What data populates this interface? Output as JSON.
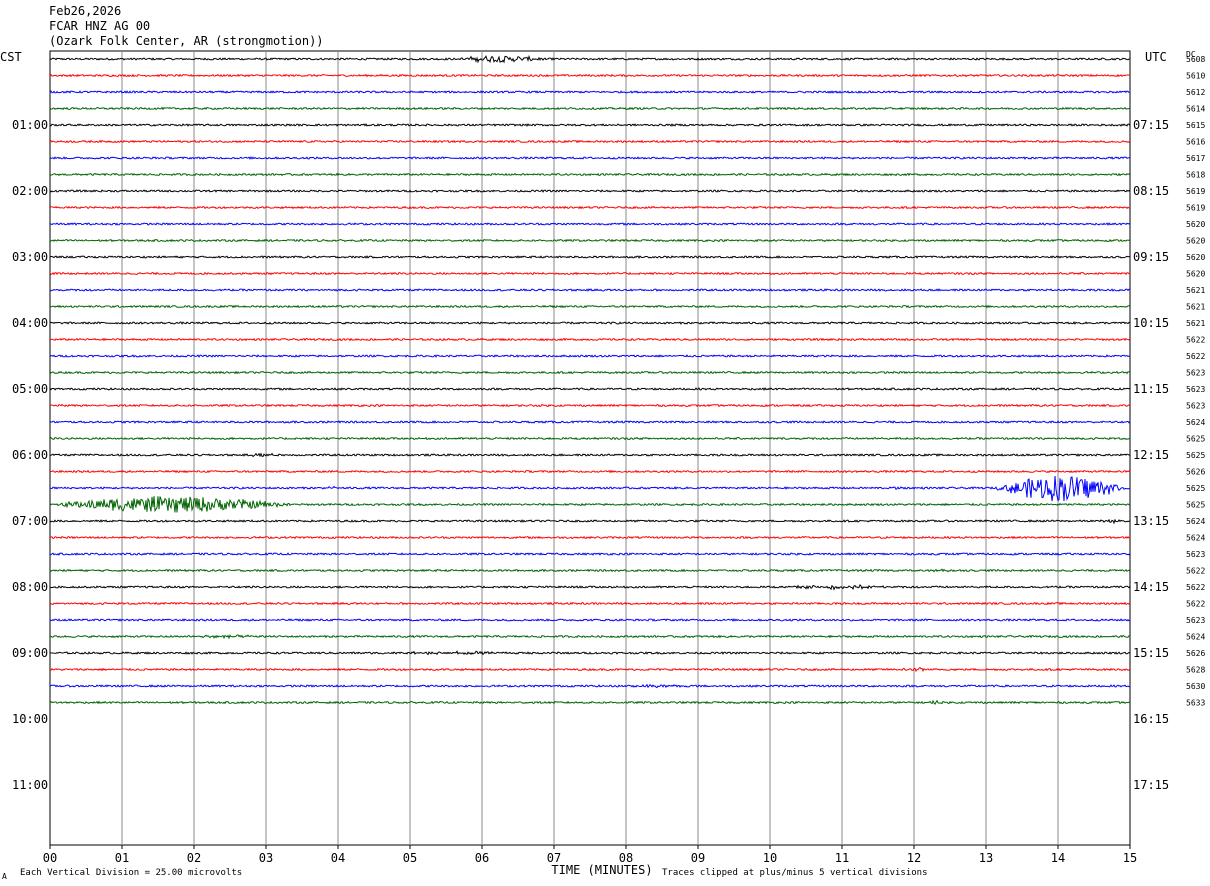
{
  "header": {
    "date": "Feb26,2026",
    "station": "FCAR HNZ AG 00",
    "location": "(Ozark Folk Center, AR (strongmotion))"
  },
  "chart_data": {
    "type": "line",
    "left_timezone": "CST",
    "right_timezone": "UTC",
    "dc_label": "DC",
    "xlabel": "TIME (MINUTES)",
    "xlim": [
      0,
      15
    ],
    "x_ticks": [
      "00",
      "01",
      "02",
      "03",
      "04",
      "05",
      "06",
      "07",
      "08",
      "09",
      "10",
      "11",
      "12",
      "13",
      "14",
      "15"
    ],
    "lines_per_hour": 4,
    "trace_colors": [
      "#000000",
      "#ff0000",
      "#0000ff",
      "#006400"
    ],
    "left_hour_labels": [
      "01:00",
      "02:00",
      "03:00",
      "04:00",
      "05:00",
      "06:00",
      "07:00",
      "08:00",
      "09:00",
      "10:00",
      "11:00"
    ],
    "right_hour_labels": [
      "07:15",
      "08:15",
      "09:15",
      "10:15",
      "11:15",
      "12:15",
      "13:15",
      "14:15",
      "15:15",
      "16:15",
      "17:15"
    ],
    "dc_offsets": [
      5608,
      5610,
      5612,
      5614,
      5615,
      5616,
      5617,
      5618,
      5619,
      5619,
      5620,
      5620,
      5620,
      5620,
      5621,
      5621,
      5621,
      5622,
      5622,
      5623,
      5623,
      5623,
      5624,
      5625,
      5625,
      5626,
      5625,
      5625,
      5624,
      5624,
      5623,
      5622,
      5622,
      5622,
      5623,
      5624,
      5626,
      5628,
      5630,
      5633
    ],
    "events": [
      {
        "line": 0,
        "start_min": 5.6,
        "end_min": 6.9,
        "amplitude_div": 1.2
      },
      {
        "line": 24,
        "start_min": 2.75,
        "end_min": 3.2,
        "amplitude_div": 0.6
      },
      {
        "line": 26,
        "start_min": 3.8,
        "end_min": 4.1,
        "amplitude_div": 0.4
      },
      {
        "line": 26,
        "start_min": 11.7,
        "end_min": 11.9,
        "amplitude_div": 0.4
      },
      {
        "line": 26,
        "start_min": 13.1,
        "end_min": 15.0,
        "amplitude_div": 5.0
      },
      {
        "line": 27,
        "start_min": 0.0,
        "end_min": 3.4,
        "amplitude_div": 3.0
      },
      {
        "line": 28,
        "start_min": 14.5,
        "end_min": 15.0,
        "amplitude_div": 0.5
      },
      {
        "line": 31,
        "start_min": 12.0,
        "end_min": 12.7,
        "amplitude_div": 0.4
      },
      {
        "line": 32,
        "start_min": 10.2,
        "end_min": 11.7,
        "amplitude_div": 0.6
      },
      {
        "line": 35,
        "start_min": 1.6,
        "end_min": 3.0,
        "amplitude_div": 0.4
      },
      {
        "line": 36,
        "start_min": 4.5,
        "end_min": 7.3,
        "amplitude_div": 0.4
      },
      {
        "line": 37,
        "start_min": 11.8,
        "end_min": 12.3,
        "amplitude_div": 0.5
      },
      {
        "line": 38,
        "start_min": 8.0,
        "end_min": 9.0,
        "amplitude_div": 0.4
      },
      {
        "line": 39,
        "start_min": 12.2,
        "end_min": 12.4,
        "amplitude_div": 0.6
      },
      {
        "line": 40,
        "start_min": 0.5,
        "end_min": 1.0,
        "amplitude_div": 0.5
      },
      {
        "line": 40,
        "start_min": 10.0,
        "end_min": 11.0,
        "amplitude_div": 0.5
      },
      {
        "line": 41,
        "start_min": 2.0,
        "end_min": 3.2,
        "amplitude_div": 0.5
      },
      {
        "line": 42,
        "start_min": 6.8,
        "end_min": 7.8,
        "amplitude_div": 0.5
      },
      {
        "line": 43,
        "start_min": 3.5,
        "end_min": 4.3,
        "amplitude_div": 0.4
      }
    ]
  },
  "footer": {
    "scale_note": "Each Vertical Division =   25.00 microvolts",
    "clip_note": "Traces clipped at plus/minus 5 vertical divisions",
    "corner_mark": "A"
  }
}
